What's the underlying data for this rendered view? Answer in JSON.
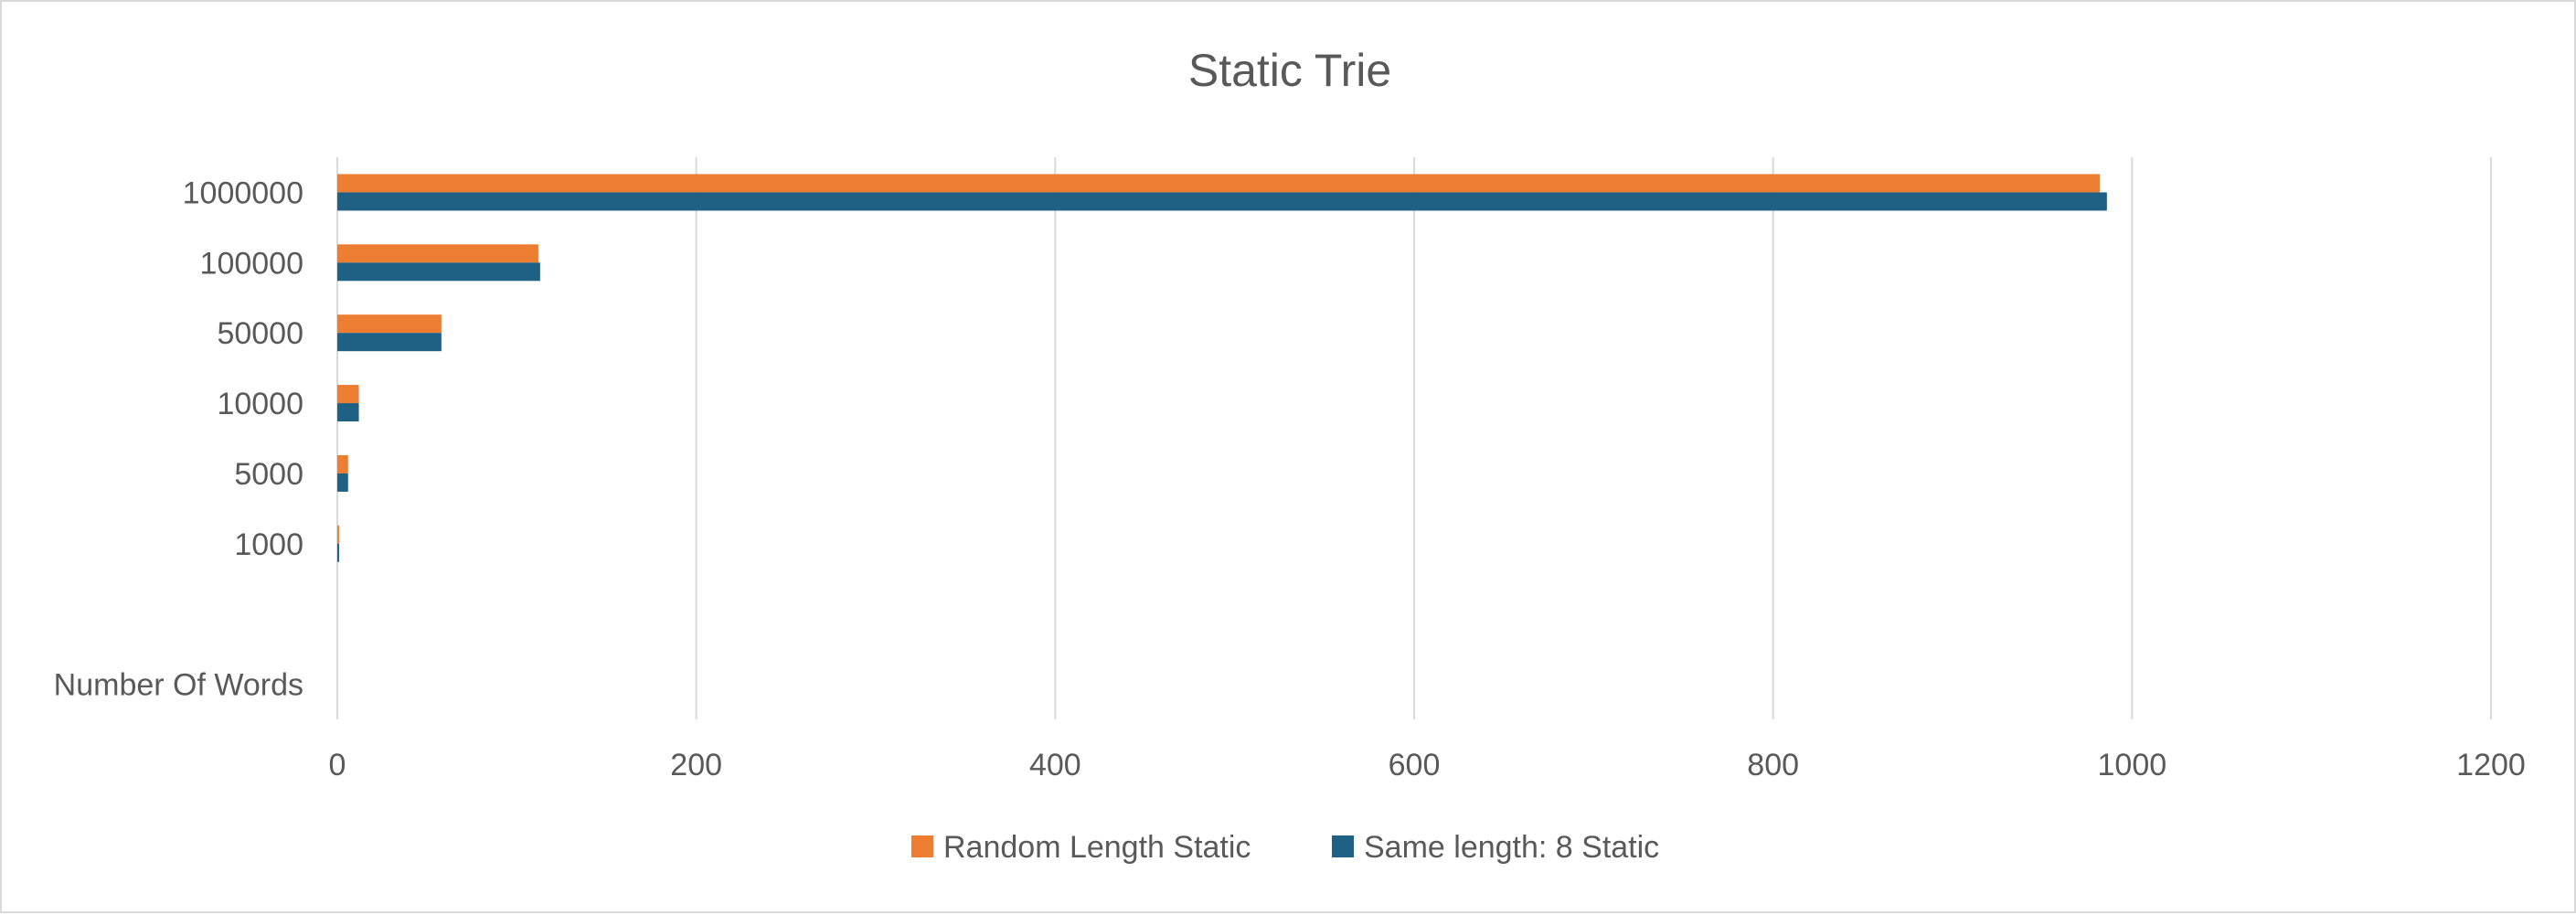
{
  "chart_data": {
    "type": "bar",
    "orientation": "horizontal",
    "title": "Static Trie",
    "categories": [
      "Number Of Words",
      "",
      "1000",
      "5000",
      "10000",
      "50000",
      "100000",
      "1000000"
    ],
    "series": [
      {
        "name": "Random Length Static",
        "color": "#ed7d31",
        "values": [
          null,
          null,
          1,
          6,
          12,
          58,
          112,
          982
        ]
      },
      {
        "name": "Same length: 8 Static",
        "color": "#1f6184",
        "values": [
          null,
          null,
          1,
          6,
          12,
          58,
          113,
          986
        ]
      }
    ],
    "x_ticks": [
      "0",
      "200",
      "400",
      "600",
      "800",
      "1000",
      "1200"
    ],
    "xlim": [
      0,
      1200
    ],
    "grid": true,
    "legend_position": "bottom"
  }
}
